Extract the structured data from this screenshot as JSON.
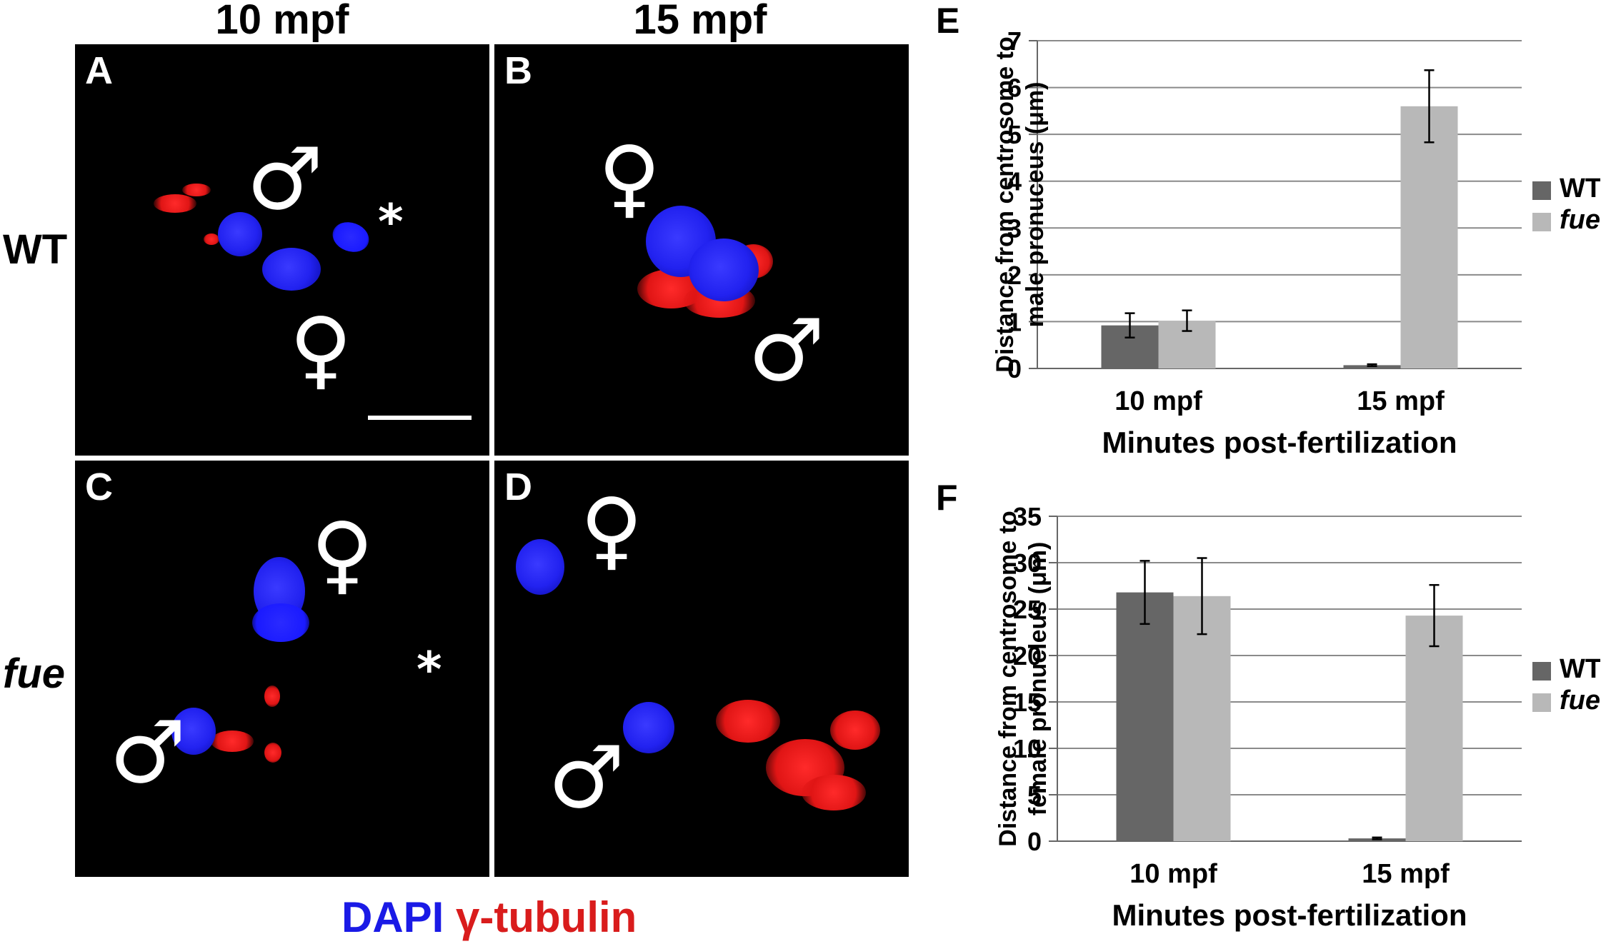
{
  "column_headers": [
    "10 mpf",
    "15 mpf"
  ],
  "row_headers": [
    "WT",
    "fue"
  ],
  "panels": [
    {
      "letter": "A"
    },
    {
      "letter": "B"
    },
    {
      "letter": "C"
    },
    {
      "letter": "D"
    }
  ],
  "symbols": {
    "male": "♂",
    "female": "♀",
    "asterisk": "*"
  },
  "stain_legend": {
    "dapi": "DAPI",
    "tubulin": "γ-tubulin",
    "dapi_color": "#1a1ae6",
    "tubulin_color": "#d91c1c"
  },
  "chart_data": [
    {
      "panel": "E",
      "type": "bar",
      "categories": [
        "10 mpf",
        "15 mpf"
      ],
      "series": [
        {
          "name": "WT",
          "values": [
            0.92,
            0.07
          ],
          "errors": [
            0.26,
            0.02
          ],
          "color": "#666666"
        },
        {
          "name": "fue",
          "values": [
            1.02,
            5.6
          ],
          "errors": [
            0.22,
            0.77
          ],
          "color": "#b8b8b8"
        }
      ],
      "xlabel": "Minutes post-fertilization",
      "ylabel_lines": [
        "Distance from centrosome to",
        "male pronuceus (μm)"
      ],
      "ylim": [
        0,
        7
      ],
      "yticks": [
        0,
        1,
        2,
        3,
        4,
        5,
        6,
        7
      ],
      "grid": true,
      "legend": "right"
    },
    {
      "panel": "F",
      "type": "bar",
      "categories": [
        "10 mpf",
        "15 mpf"
      ],
      "series": [
        {
          "name": "WT",
          "values": [
            26.8,
            0.3
          ],
          "errors": [
            3.4,
            0.1
          ],
          "color": "#666666"
        },
        {
          "name": "fue",
          "values": [
            26.4,
            24.3
          ],
          "errors": [
            4.1,
            3.3
          ],
          "color": "#b8b8b8"
        }
      ],
      "xlabel": "Minutes post-fertilization",
      "ylabel_lines": [
        "Distance from centrosome to",
        "female pronucleus (μm)"
      ],
      "ylim": [
        0,
        35
      ],
      "yticks": [
        0,
        5,
        10,
        15,
        20,
        25,
        30,
        35
      ],
      "grid": true,
      "legend": "right"
    }
  ]
}
